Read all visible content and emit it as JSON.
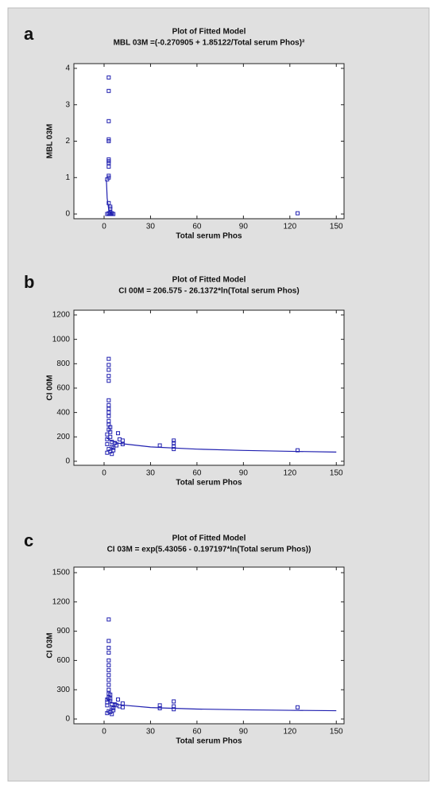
{
  "chart_data": [
    {
      "type": "scatter",
      "panel": "a",
      "title": "Plot of Fitted Model",
      "subtitle": "MBL 03M =(-0.270905 + 1.85122/Total serum Phos)²",
      "x_label": "Total serum Phos",
      "y_label": "MBL 03M",
      "color": "#2020b0",
      "xlim": [
        -19.5,
        155
      ],
      "ylim": [
        -0.13,
        4.13
      ],
      "xticks": [
        0,
        30,
        60,
        90,
        120,
        150
      ],
      "yticks": [
        0,
        1,
        2,
        3,
        4
      ],
      "points": {
        "x": [
          3,
          3,
          3,
          3,
          3,
          3,
          3,
          3,
          3,
          3,
          3,
          2,
          3,
          4,
          4,
          4,
          2,
          3,
          4,
          5,
          6,
          3,
          4,
          5,
          125
        ],
        "values": [
          3.75,
          3.38,
          2.55,
          2.05,
          2.0,
          1.5,
          1.45,
          1.4,
          1.3,
          1.05,
          1.0,
          0.95,
          0.3,
          0.2,
          0.15,
          0.05,
          0,
          0,
          0,
          0,
          0,
          0.02,
          0.02,
          0.02,
          0.02
        ]
      },
      "fit": {
        "x": [
          1.5,
          2,
          3,
          4,
          5,
          6
        ],
        "values": [
          0.93,
          0.43,
          0.12,
          0.04,
          0.01,
          0.0
        ]
      }
    },
    {
      "type": "scatter",
      "panel": "b",
      "title": "Plot of Fitted Model",
      "subtitle": "CI 00M = 206.575 - 26.1372*ln(Total serum Phos)",
      "x_label": "Total serum Phos",
      "y_label": "CI 00M",
      "color": "#2020b0",
      "xlim": [
        -19.5,
        155
      ],
      "ylim": [
        -33,
        1239
      ],
      "xticks": [
        0,
        30,
        60,
        90,
        120,
        150
      ],
      "yticks": [
        0,
        200,
        400,
        600,
        800,
        1000,
        1200
      ],
      "points": {
        "x": [
          3,
          3,
          3,
          3,
          3,
          3,
          3,
          3,
          3,
          3,
          3,
          3,
          3,
          2,
          2,
          2,
          4,
          4,
          4,
          5,
          5,
          6,
          6,
          7,
          8,
          9,
          10,
          12,
          12,
          36,
          45,
          45,
          45,
          45,
          125,
          3,
          4,
          2,
          5
        ],
        "values": [
          840,
          790,
          750,
          700,
          660,
          500,
          460,
          430,
          400,
          370,
          330,
          300,
          260,
          220,
          180,
          140,
          280,
          240,
          200,
          160,
          120,
          110,
          90,
          150,
          130,
          230,
          180,
          170,
          140,
          130,
          100,
          120,
          150,
          170,
          90,
          100,
          80,
          70,
          60
        ]
      },
      "fit": {
        "x": [
          1.5,
          2,
          5,
          10,
          30,
          60,
          90,
          120,
          150
        ],
        "values": [
          196,
          188.5,
          164.5,
          146.4,
          117.7,
          99.6,
          89,
          81.4,
          75.6
        ]
      }
    },
    {
      "type": "scatter",
      "panel": "c",
      "title": "Plot of Fitted Model",
      "subtitle": "CI 03M = exp(5.43056 - 0.197197*ln(Total serum Phos))",
      "x_label": "Total serum Phos",
      "y_label": "CI 03M",
      "color": "#2020b0",
      "xlim": [
        -19.5,
        155
      ],
      "ylim": [
        -49,
        1557
      ],
      "xticks": [
        0,
        30,
        60,
        90,
        120,
        150
      ],
      "yticks": [
        0,
        300,
        600,
        900,
        1200,
        1500
      ],
      "points": {
        "x": [
          3,
          3,
          3,
          3,
          3,
          3,
          3,
          3,
          3,
          3,
          3,
          3,
          3,
          2,
          2,
          2,
          4,
          4,
          4,
          5,
          5,
          6,
          6,
          7,
          8,
          9,
          10,
          12,
          12,
          36,
          36,
          45,
          45,
          45,
          125,
          3,
          4,
          2,
          5
        ],
        "values": [
          1020,
          800,
          730,
          680,
          600,
          550,
          500,
          450,
          400,
          350,
          300,
          260,
          220,
          200,
          170,
          140,
          250,
          210,
          180,
          150,
          120,
          110,
          90,
          150,
          140,
          200,
          130,
          160,
          120,
          140,
          110,
          180,
          130,
          100,
          120,
          80,
          70,
          60,
          50
        ]
      },
      "fit": {
        "x": [
          1.5,
          2,
          5,
          10,
          30,
          60,
          90,
          120,
          150
        ],
        "values": [
          211,
          199,
          166,
          145,
          117,
          102,
          94,
          89,
          85
        ]
      }
    }
  ]
}
